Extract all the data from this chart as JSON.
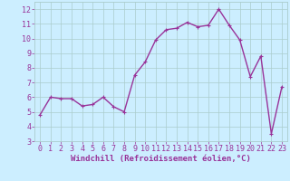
{
  "x": [
    0,
    1,
    2,
    3,
    4,
    5,
    6,
    7,
    8,
    9,
    10,
    11,
    12,
    13,
    14,
    15,
    16,
    17,
    18,
    19,
    20,
    21,
    22,
    23
  ],
  "y": [
    4.8,
    6.0,
    5.9,
    5.9,
    5.4,
    5.5,
    6.0,
    5.35,
    5.0,
    7.5,
    8.4,
    9.9,
    10.6,
    10.7,
    11.1,
    10.8,
    10.9,
    12.0,
    10.9,
    9.9,
    7.4,
    8.8,
    3.5,
    6.7
  ],
  "line_color": "#993399",
  "marker": "+",
  "marker_size": 3,
  "bg_color": "#cceeff",
  "grid_color": "#aacccc",
  "xlabel": "Windchill (Refroidissement éolien,°C)",
  "ylim": [
    3,
    12.5
  ],
  "xlim": [
    -0.5,
    23.5
  ],
  "yticks": [
    3,
    4,
    5,
    6,
    7,
    8,
    9,
    10,
    11,
    12
  ],
  "xticks": [
    0,
    1,
    2,
    3,
    4,
    5,
    6,
    7,
    8,
    9,
    10,
    11,
    12,
    13,
    14,
    15,
    16,
    17,
    18,
    19,
    20,
    21,
    22,
    23
  ],
  "xlabel_fontsize": 6.5,
  "tick_fontsize": 6,
  "line_width": 1.0,
  "text_color": "#993399"
}
